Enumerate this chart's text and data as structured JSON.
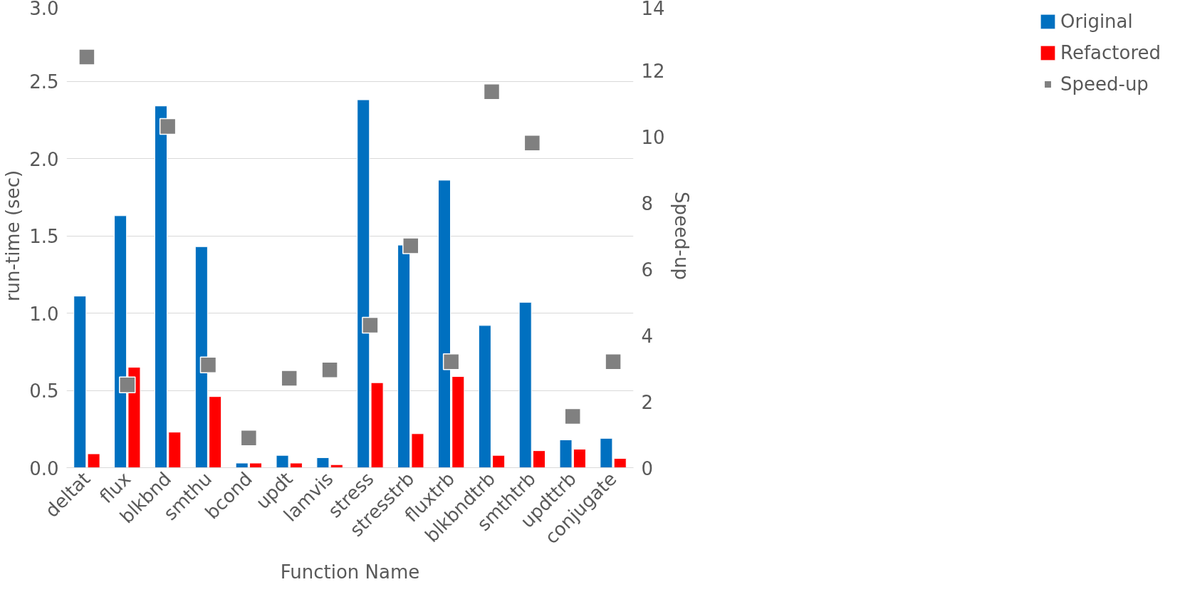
{
  "chart_data": {
    "type": "bar",
    "xlabel": "Function Name",
    "ylabel": "run-time (sec)",
    "y2label": "Speed-up",
    "categories": [
      "deltat",
      "flux",
      "blkbnd",
      "smthu",
      "bcond",
      "updt",
      "lamvis",
      "stress",
      "stresstrb",
      "fluxtrb",
      "blkbndtrb",
      "smthtrb",
      "updttrb",
      "conjugate"
    ],
    "series": [
      {
        "name": "Original",
        "color": "#0070c0",
        "values": [
          1.11,
          1.63,
          2.34,
          1.43,
          0.03,
          0.08,
          0.065,
          2.38,
          1.44,
          1.86,
          0.92,
          1.07,
          0.18,
          0.19
        ]
      },
      {
        "name": "Refactored",
        "color": "#ff0000",
        "values": [
          0.09,
          0.65,
          0.23,
          0.46,
          0.03,
          0.03,
          0.02,
          0.55,
          0.22,
          0.59,
          0.08,
          0.11,
          0.12,
          0.06
        ]
      },
      {
        "name": "Speed-up",
        "type": "scatter",
        "axis": "y2",
        "marker": "square",
        "color": "#808080",
        "values": [
          12.4,
          2.5,
          10.3,
          3.1,
          0.9,
          2.7,
          2.95,
          4.3,
          6.7,
          3.2,
          11.35,
          9.8,
          1.55,
          3.2
        ]
      }
    ],
    "ylim": [
      0,
      3.0
    ],
    "yticks": [
      {
        "value": 0,
        "label": "0.0"
      },
      0.5,
      {
        "value": 1,
        "label": "1.0"
      },
      1.5,
      {
        "value": 2,
        "label": "2.0"
      },
      2.5,
      {
        "value": 3,
        "label": "3.0"
      }
    ],
    "y2lim": [
      0,
      14
    ],
    "y2ticks": [
      0,
      2,
      4,
      6,
      8,
      10,
      12,
      14
    ],
    "grid": "y",
    "legend": "right"
  }
}
